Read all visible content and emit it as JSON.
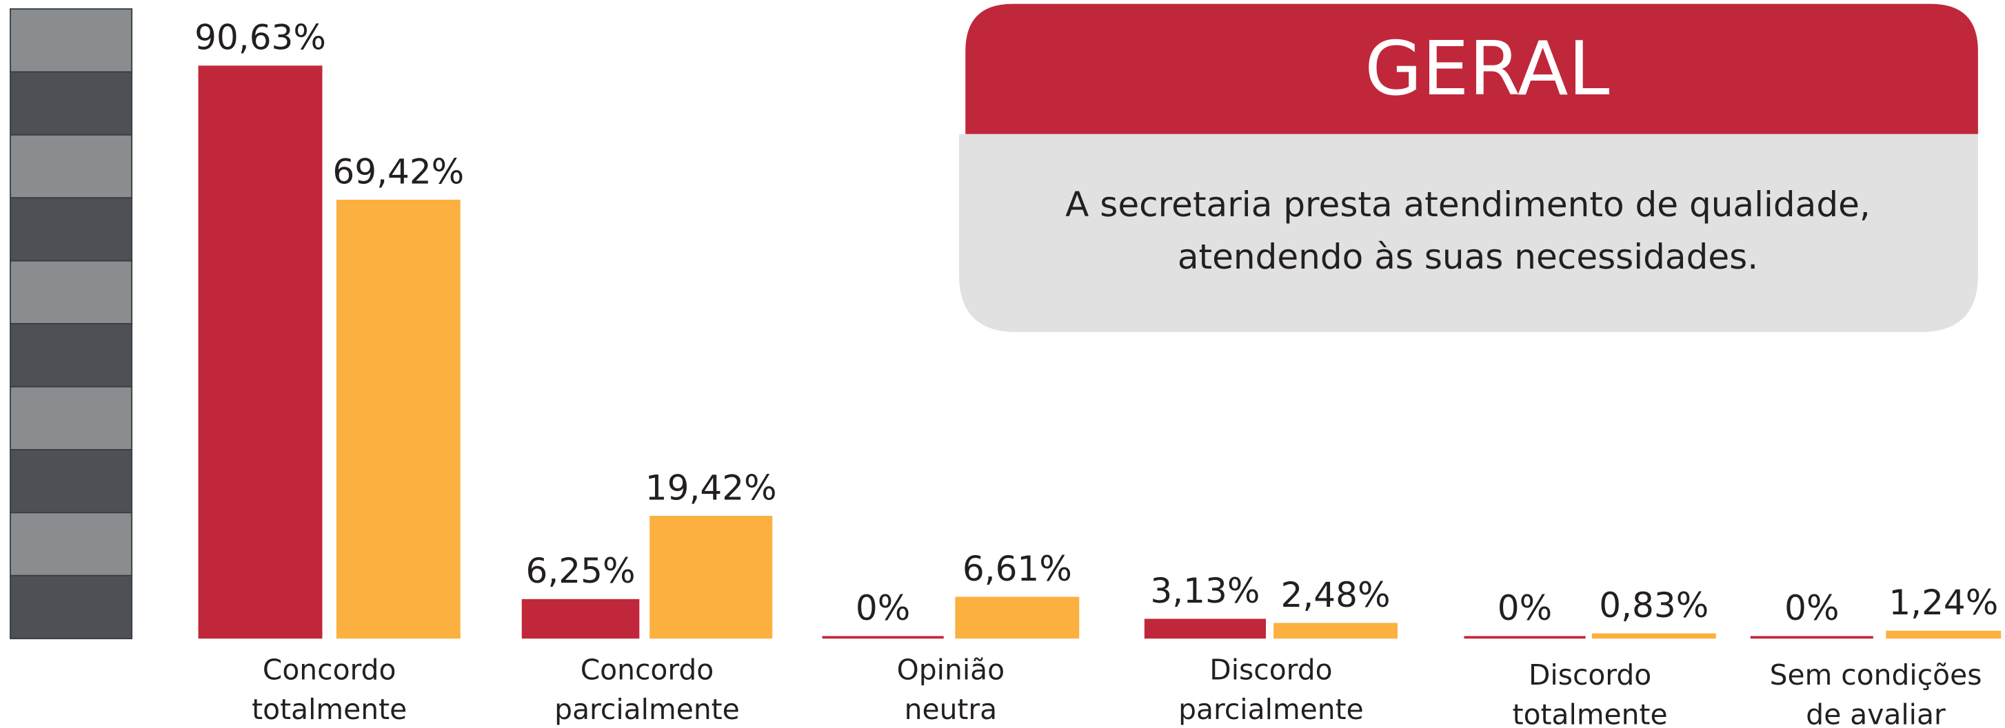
{
  "chart_data": {
    "type": "bar",
    "title": "GERAL",
    "subtitle": [
      "A secretaria presta atendimento de qualidade,",
      "atendendo às suas necessidades."
    ],
    "categories": [
      [
        "Concordo",
        "totalmente"
      ],
      [
        "Concordo",
        "parcialmente"
      ],
      [
        "Opinião",
        "neutra"
      ],
      [
        "Discordo",
        "parcialmente"
      ],
      [
        "Discordo",
        "totalmente"
      ],
      [
        "Sem condições",
        "de avaliar"
      ]
    ],
    "series": [
      {
        "color": "#c1273a",
        "values": [
          90.63,
          6.25,
          0,
          3.13,
          0,
          0
        ],
        "value_labels": [
          "90,63%",
          "6,25%",
          "0%",
          "3,13%",
          "0%",
          "0%"
        ]
      },
      {
        "color": "#fbb040",
        "values": [
          69.42,
          19.42,
          6.61,
          2.48,
          0.83,
          1.24
        ],
        "value_labels": [
          "69,42%",
          "19,42%",
          "6,61%",
          "2,48%",
          "0,83%",
          "1,24%"
        ]
      }
    ],
    "ylim": [
      0,
      100
    ]
  }
}
